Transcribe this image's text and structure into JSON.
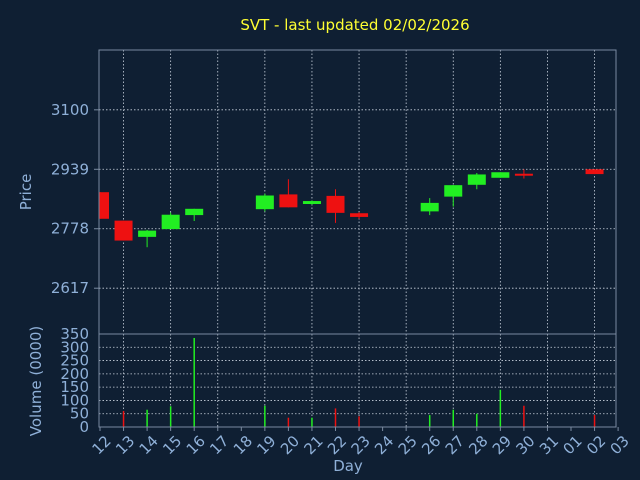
{
  "colors": {
    "background": "#0f1f33",
    "title": "#ffff33",
    "axis_text": "#8fb0d8",
    "frame": "#7a8aa0",
    "grid": "#c9d2de",
    "up": "#22ee22",
    "down": "#ee1111"
  },
  "chart_data": [
    {
      "type": "candlestick",
      "title": "SVT - last updated 02/02/2026",
      "ylabel": "Price",
      "yticks": [
        2617,
        2778,
        2939,
        3100
      ],
      "ylim": [
        2493,
        3262
      ],
      "grid": true,
      "x_tick_labels": [
        "12",
        "13",
        "14",
        "15",
        "16",
        "17",
        "18",
        "19",
        "20",
        "21",
        "22",
        "23",
        "24",
        "25",
        "26",
        "27",
        "28",
        "29",
        "30",
        "31",
        "01",
        "02",
        "03"
      ],
      "candles": [
        {
          "day": "12",
          "open": 2877,
          "close": 2805,
          "high": 2877,
          "low": 2805
        },
        {
          "day": "13",
          "open": 2800,
          "close": 2746,
          "high": 2800,
          "low": 2746
        },
        {
          "day": "14",
          "open": 2756,
          "close": 2773,
          "high": 2775,
          "low": 2728
        },
        {
          "day": "15",
          "open": 2777,
          "close": 2816,
          "high": 2822,
          "low": 2777
        },
        {
          "day": "16",
          "open": 2815,
          "close": 2832,
          "high": 2832,
          "low": 2799
        },
        {
          "day": "19",
          "open": 2831,
          "close": 2868,
          "high": 2873,
          "low": 2825
        },
        {
          "day": "20",
          "open": 2871,
          "close": 2836,
          "high": 2912,
          "low": 2836
        },
        {
          "day": "21",
          "open": 2845,
          "close": 2853,
          "high": 2855,
          "low": 2843
        },
        {
          "day": "22",
          "open": 2867,
          "close": 2821,
          "high": 2885,
          "low": 2794
        },
        {
          "day": "23",
          "open": 2820,
          "close": 2810,
          "high": 2823,
          "low": 2805
        },
        {
          "day": "26",
          "open": 2825,
          "close": 2848,
          "high": 2861,
          "low": 2815
        },
        {
          "day": "27",
          "open": 2865,
          "close": 2896,
          "high": 2896,
          "low": 2838
        },
        {
          "day": "28",
          "open": 2897,
          "close": 2925,
          "high": 2929,
          "low": 2885
        },
        {
          "day": "29",
          "open": 2916,
          "close": 2931,
          "high": 2931,
          "low": 2916
        },
        {
          "day": "30",
          "open": 2927,
          "close": 2924,
          "high": 2939,
          "low": 2914
        },
        {
          "day": "02",
          "open": 2939,
          "close": 2926,
          "high": 2939,
          "low": 2926
        }
      ]
    },
    {
      "type": "bar",
      "xlabel": "Day",
      "ylabel": "Volume (0000)",
      "yticks": [
        0,
        50,
        100,
        150,
        200,
        250,
        300,
        350
      ],
      "ylim": [
        0,
        350
      ],
      "grid": true,
      "x_tick_labels": [
        "12",
        "13",
        "14",
        "15",
        "16",
        "17",
        "18",
        "19",
        "20",
        "21",
        "22",
        "23",
        "24",
        "25",
        "26",
        "27",
        "28",
        "29",
        "30",
        "31",
        "01",
        "02",
        "03"
      ],
      "bars": [
        {
          "day": "13",
          "value": 60,
          "direction": "down"
        },
        {
          "day": "14",
          "value": 65,
          "direction": "up"
        },
        {
          "day": "15",
          "value": 78,
          "direction": "up"
        },
        {
          "day": "16",
          "value": 335,
          "direction": "up"
        },
        {
          "day": "19",
          "value": 80,
          "direction": "up"
        },
        {
          "day": "20",
          "value": 35,
          "direction": "down"
        },
        {
          "day": "21",
          "value": 35,
          "direction": "up"
        },
        {
          "day": "22",
          "value": 70,
          "direction": "down"
        },
        {
          "day": "23",
          "value": 40,
          "direction": "down"
        },
        {
          "day": "26",
          "value": 45,
          "direction": "up"
        },
        {
          "day": "27",
          "value": 65,
          "direction": "up"
        },
        {
          "day": "28",
          "value": 50,
          "direction": "up"
        },
        {
          "day": "29",
          "value": 140,
          "direction": "up"
        },
        {
          "day": "30",
          "value": 80,
          "direction": "down"
        },
        {
          "day": "02",
          "value": 45,
          "direction": "down"
        }
      ]
    }
  ]
}
